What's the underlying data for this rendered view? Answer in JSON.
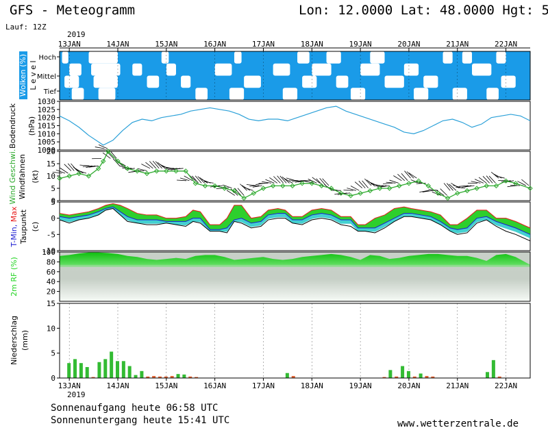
{
  "header": {
    "title": "GFS - Meteogramm",
    "location": "Lon: 12.0000 Lat: 48.0000 Hgt: 5",
    "run": "Lauf: 12Z",
    "year": "2019"
  },
  "footer": {
    "sunrise": "Sonnenaufgang heute 06:58 UTC",
    "sunset": "Sonnenuntergang heute 15:41 UTC",
    "source": "www.wetterzentrale.de"
  },
  "colors": {
    "cloud": "#1a9be8",
    "pressure": "#2aa0d8",
    "wind": "#2faa2f",
    "tmin": "#1a1ad0",
    "tmax": "#e81818",
    "dewpoint": "#000000",
    "fill_green": "#22cc22",
    "fill_cyan": "#22c8c8",
    "rh": "#22d422",
    "precip": "#33bb33"
  },
  "chart_data": [
    {
      "type": "heatmap",
      "panel": "clouds",
      "ylabel": "Wolken (%)",
      "levels": [
        "Hoch",
        "Mittel",
        "Tief"
      ],
      "level_axis_label": "L e v e l",
      "x_ticks": [
        "13JAN",
        "14JAN",
        "15JAN",
        "16JAN",
        "17JAN",
        "18JAN",
        "19JAN",
        "20JAN",
        "21JAN",
        "22JAN"
      ],
      "x_start_day": 12.8,
      "x_end_day": 22.5,
      "clear_bands": [
        {
          "y0": 0.0,
          "y1": 0.25,
          "spans": [
            [
              12.85,
              12.98
            ],
            [
              13.4,
              14.0
            ],
            [
              14.9,
              15.05
            ],
            [
              16.4,
              16.55
            ],
            [
              17.7,
              17.95
            ],
            [
              18.3,
              18.6
            ],
            [
              19.2,
              19.5
            ],
            [
              20.7,
              20.9
            ],
            [
              21.1,
              21.3
            ],
            [
              21.8,
              22.0
            ]
          ]
        },
        {
          "y0": 0.25,
          "y1": 0.5,
          "spans": [
            [
              13.0,
              13.25
            ],
            [
              13.45,
              14.05
            ],
            [
              14.3,
              14.5
            ],
            [
              15.0,
              15.2
            ],
            [
              16.0,
              16.35
            ],
            [
              17.2,
              17.55
            ],
            [
              18.0,
              18.4
            ],
            [
              19.0,
              19.4
            ],
            [
              19.9,
              20.2
            ],
            [
              21.3,
              21.7
            ]
          ]
        },
        {
          "y0": 0.5,
          "y1": 0.75,
          "spans": [
            [
              12.9,
              13.2
            ],
            [
              13.5,
              14.0
            ],
            [
              14.6,
              14.85
            ],
            [
              15.3,
              15.5
            ],
            [
              16.6,
              16.95
            ],
            [
              17.8,
              18.1
            ],
            [
              18.5,
              18.75
            ],
            [
              19.5,
              19.9
            ],
            [
              20.3,
              20.6
            ],
            [
              21.9,
              22.2
            ]
          ]
        },
        {
          "y0": 0.75,
          "y1": 1.0,
          "spans": [
            [
              13.05,
              13.3
            ],
            [
              13.6,
              13.95
            ],
            [
              15.6,
              15.85
            ],
            [
              16.3,
              16.6
            ],
            [
              17.4,
              17.7
            ],
            [
              18.8,
              19.1
            ],
            [
              20.1,
              20.4
            ],
            [
              20.9,
              21.2
            ],
            [
              21.6,
              21.85
            ]
          ]
        }
      ]
    },
    {
      "type": "line",
      "panel": "pressure",
      "ylabel": "Bodendruck",
      "yunit": "(hPa)",
      "ylim": [
        1000,
        1030
      ],
      "yticks": [
        1000,
        1005,
        1010,
        1015,
        1020,
        1025,
        1030
      ],
      "x": [
        12.8,
        13.0,
        13.2,
        13.4,
        13.6,
        13.7,
        13.9,
        14.1,
        14.3,
        14.5,
        14.7,
        14.9,
        15.1,
        15.3,
        15.5,
        15.7,
        15.9,
        16.1,
        16.3,
        16.5,
        16.7,
        16.9,
        17.1,
        17.3,
        17.5,
        17.7,
        17.9,
        18.1,
        18.3,
        18.5,
        18.7,
        18.9,
        19.1,
        19.3,
        19.5,
        19.7,
        19.9,
        20.1,
        20.3,
        20.5,
        20.7,
        20.9,
        21.1,
        21.3,
        21.5,
        21.7,
        21.9,
        22.1,
        22.3,
        22.5
      ],
      "y": [
        1021,
        1018,
        1014,
        1009,
        1005,
        1003,
        1006,
        1012,
        1017,
        1019,
        1018,
        1020,
        1021,
        1022,
        1024,
        1025,
        1026,
        1025,
        1024,
        1022,
        1019,
        1018,
        1019,
        1019,
        1018,
        1020,
        1022,
        1024,
        1026,
        1027,
        1024,
        1022,
        1020,
        1018,
        1016,
        1014,
        1011,
        1010,
        1012,
        1015,
        1018,
        1019,
        1017,
        1014,
        1016,
        1020,
        1021,
        1022,
        1021,
        1018
      ]
    },
    {
      "type": "line",
      "panel": "wind",
      "ylabel": "Wind Geschwi.",
      "ylabel2": "Windfahnen",
      "yunit": "(kt)",
      "ylim": [
        0,
        20
      ],
      "yticks": [
        0,
        5,
        10,
        15,
        20
      ],
      "x": [
        12.8,
        13.0,
        13.2,
        13.4,
        13.6,
        13.7,
        13.8,
        14.0,
        14.2,
        14.4,
        14.6,
        14.8,
        15.0,
        15.2,
        15.4,
        15.6,
        15.8,
        16.0,
        16.2,
        16.4,
        16.6,
        16.8,
        17.0,
        17.2,
        17.4,
        17.6,
        17.8,
        18.0,
        18.2,
        18.4,
        18.6,
        18.8,
        19.0,
        19.2,
        19.4,
        19.6,
        19.8,
        20.0,
        20.2,
        20.4,
        20.6,
        20.8,
        21.0,
        21.2,
        21.4,
        21.6,
        21.8,
        22.0,
        22.2,
        22.5
      ],
      "y": [
        9,
        10,
        11,
        10,
        13,
        16,
        20,
        16,
        13,
        12,
        11,
        12,
        12,
        12,
        12,
        7,
        6,
        6,
        5,
        4,
        1,
        3,
        5,
        6,
        6,
        6,
        7,
        7,
        6,
        5,
        3,
        2,
        3,
        4,
        5,
        5,
        6,
        7,
        8,
        6,
        3,
        1,
        3,
        4,
        5,
        6,
        6,
        8,
        7,
        5
      ]
    },
    {
      "type": "area",
      "panel": "temperature",
      "ylabel": "T-Min, Max",
      "ylabel2": "Taupunkt",
      "yunit": "(c)",
      "ylim": [
        -10,
        5
      ],
      "yticks": [
        -10,
        -5,
        0,
        5
      ],
      "x": [
        12.8,
        13.0,
        13.2,
        13.4,
        13.6,
        13.75,
        13.9,
        14.05,
        14.2,
        14.4,
        14.6,
        14.8,
        15.0,
        15.2,
        15.4,
        15.55,
        15.7,
        15.9,
        16.1,
        16.25,
        16.4,
        16.55,
        16.75,
        16.95,
        17.1,
        17.3,
        17.45,
        17.6,
        17.8,
        18.0,
        18.2,
        18.4,
        18.6,
        18.8,
        18.95,
        19.1,
        19.3,
        19.5,
        19.7,
        19.9,
        20.05,
        20.25,
        20.45,
        20.65,
        20.85,
        21.0,
        21.2,
        21.4,
        21.6,
        21.8,
        22.0,
        22.2,
        22.5
      ],
      "tmax": [
        1.5,
        1,
        1.5,
        2,
        3,
        4,
        4.5,
        4,
        3,
        1.5,
        1,
        1,
        0,
        0,
        0.5,
        2.5,
        2,
        -2,
        -2,
        0,
        4,
        4,
        0,
        0.5,
        2.5,
        3,
        2.5,
        0.5,
        0.5,
        2.5,
        3,
        2.5,
        0.5,
        0.5,
        -2,
        -2,
        0,
        1,
        3,
        3.5,
        3,
        2.5,
        2,
        1,
        -2,
        -2,
        0,
        2.5,
        2.5,
        0,
        0,
        -1,
        -3
      ],
      "tmin": [
        0.5,
        0,
        0.5,
        1,
        2,
        3,
        3.5,
        2,
        0.5,
        -0.5,
        -0.5,
        -0.5,
        -1,
        -1,
        -1,
        0,
        0,
        -3.5,
        -3.5,
        -3,
        -0.5,
        0,
        -1.5,
        -1,
        1,
        1.5,
        1.5,
        -0.5,
        -0.5,
        1,
        1.5,
        1,
        -0.5,
        -0.5,
        -3,
        -3,
        -3,
        -1.5,
        0,
        1.5,
        1.5,
        1,
        0.5,
        -1,
        -3,
        -3.5,
        -3,
        0,
        0.5,
        -1,
        -2,
        -3,
        -5
      ],
      "dewpoint": [
        -0.5,
        -1.5,
        -0.5,
        0,
        1,
        2.5,
        3,
        1,
        -1,
        -1.5,
        -2,
        -2,
        -1.5,
        -2,
        -2.5,
        -1,
        -1.5,
        -4,
        -4,
        -4.5,
        -1,
        -1.5,
        -3,
        -2.5,
        -0.5,
        0,
        0,
        -1.5,
        -2,
        -0.5,
        0,
        -0.5,
        -2,
        -2.5,
        -4,
        -4,
        -4.5,
        -3,
        -1,
        0.5,
        0.5,
        0,
        -0.5,
        -2,
        -4,
        -5,
        -4.5,
        -1.5,
        -0.5,
        -2.5,
        -4,
        -5,
        -7
      ]
    },
    {
      "type": "area",
      "panel": "humidity",
      "ylabel": "2m RF (%)",
      "ylim": [
        0,
        100
      ],
      "yticks": [
        20,
        40,
        60,
        80,
        100
      ],
      "x": [
        12.8,
        13.0,
        13.2,
        13.4,
        13.6,
        13.8,
        14.0,
        14.2,
        14.4,
        14.6,
        14.8,
        15.0,
        15.2,
        15.4,
        15.6,
        15.8,
        16.0,
        16.2,
        16.4,
        16.6,
        16.8,
        17.0,
        17.2,
        17.4,
        17.6,
        17.8,
        18.0,
        18.2,
        18.4,
        18.6,
        18.8,
        19.0,
        19.2,
        19.4,
        19.6,
        19.8,
        20.0,
        20.2,
        20.4,
        20.6,
        20.8,
        21.0,
        21.2,
        21.4,
        21.6,
        21.8,
        22.0,
        22.2,
        22.5
      ],
      "y": [
        92,
        94,
        97,
        99,
        99,
        98,
        96,
        92,
        90,
        86,
        84,
        86,
        88,
        86,
        92,
        94,
        94,
        90,
        84,
        86,
        88,
        90,
        86,
        84,
        86,
        90,
        92,
        94,
        96,
        94,
        90,
        84,
        94,
        92,
        86,
        88,
        92,
        94,
        96,
        96,
        94,
        92,
        92,
        88,
        82,
        94,
        96,
        90,
        74
      ]
    },
    {
      "type": "bar",
      "panel": "precipitation",
      "ylabel": "Niederschlag",
      "yunit": "(mm)",
      "ylim": [
        0,
        15
      ],
      "yticks": [
        0,
        5,
        10,
        15
      ],
      "x": [
        13.0,
        13.125,
        13.25,
        13.375,
        13.5,
        13.625,
        13.75,
        13.875,
        14.0,
        14.125,
        14.25,
        14.375,
        14.5,
        14.625,
        14.75,
        14.875,
        15.0,
        15.125,
        15.25,
        15.375,
        15.5,
        15.625,
        17.5,
        17.625,
        19.5,
        19.625,
        19.75,
        19.875,
        20.0,
        20.125,
        20.25,
        20.375,
        20.5,
        21.625,
        21.75,
        21.875
      ],
      "values": [
        3,
        3.8,
        3,
        2.2,
        0.2,
        3.2,
        3.8,
        5.3,
        3.4,
        3.4,
        2.4,
        0.6,
        1.4,
        0.3,
        0.4,
        0.3,
        0.3,
        0.4,
        0.8,
        0.7,
        0.3,
        0.2,
        1,
        0.4,
        0.2,
        1.6,
        0.3,
        2.4,
        1.4,
        0.3,
        0.9,
        0.4,
        0.3,
        1.2,
        3.6,
        0.3
      ]
    }
  ]
}
